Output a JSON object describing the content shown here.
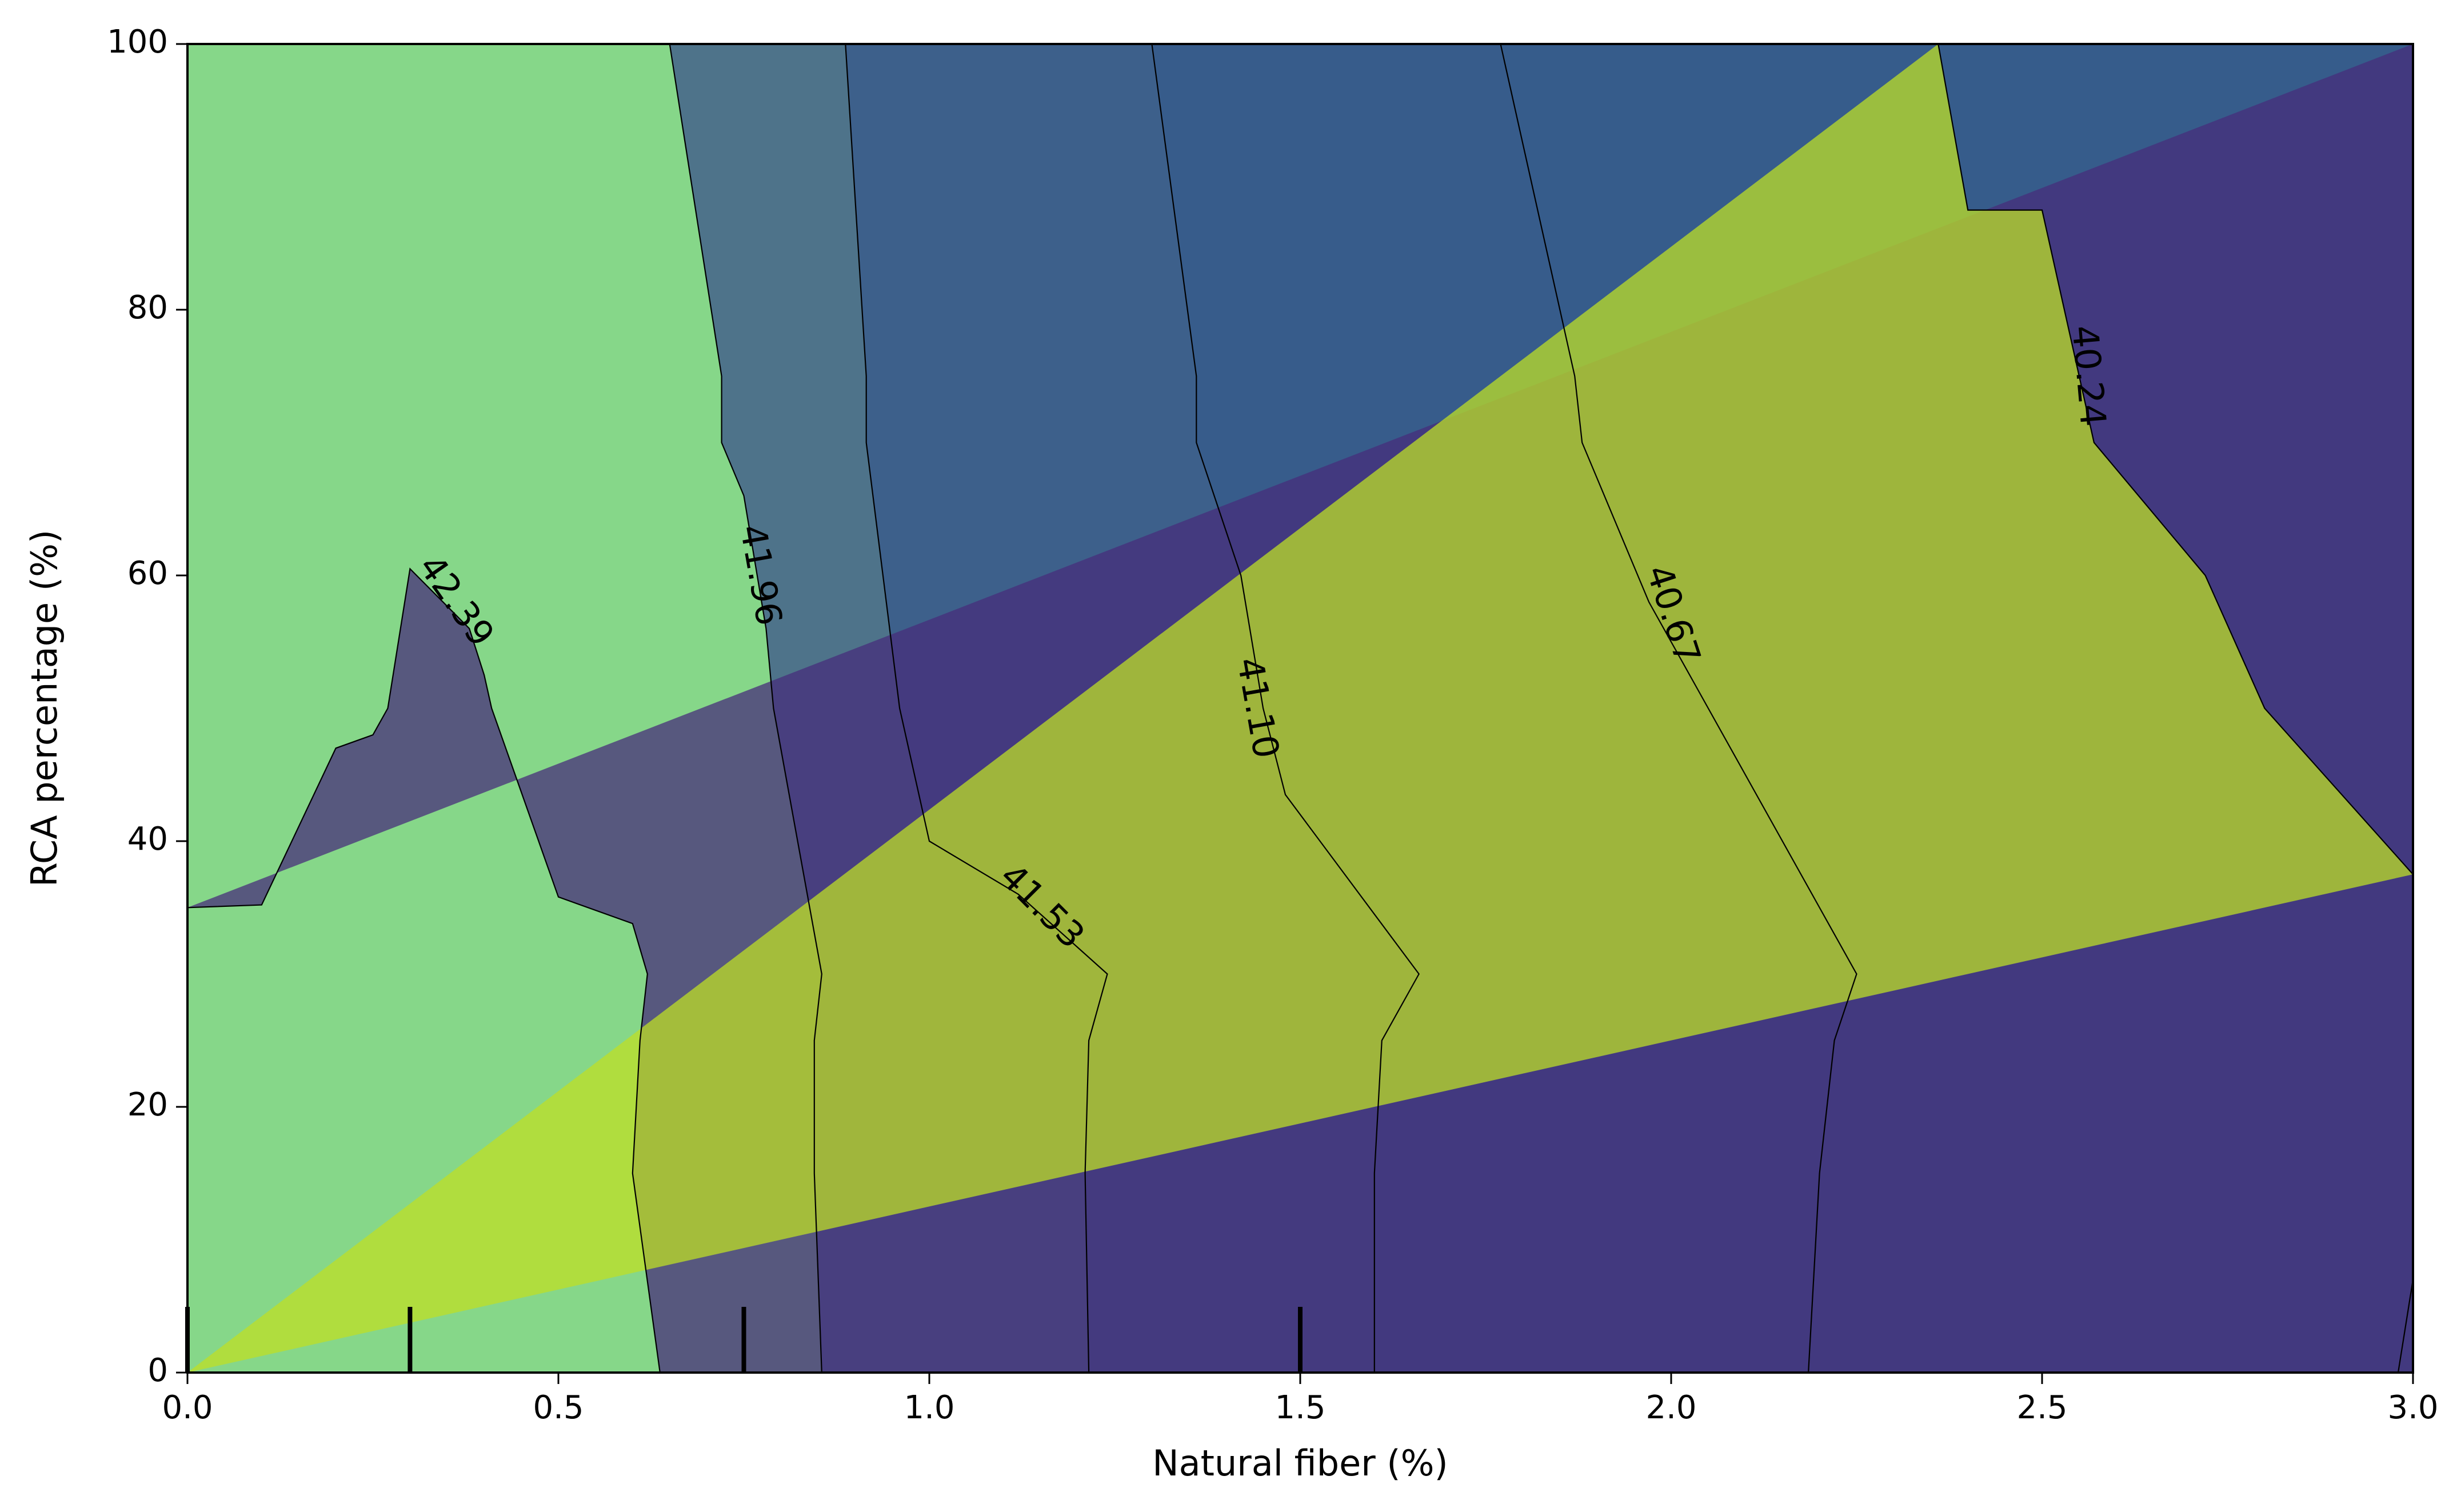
{
  "chart_data": {
    "type": "contour",
    "xlabel": "Natural  fiber (%)",
    "ylabel": "RCA percentage (%)",
    "xlim": [
      0.0,
      3.0
    ],
    "ylim": [
      0,
      100
    ],
    "x_ticks": [
      0.0,
      0.5,
      1.0,
      1.5,
      2.0,
      2.5,
      3.0
    ],
    "x_tick_labels": [
      "0.0",
      "0.5",
      "1.0",
      "1.5",
      "2.0",
      "2.5",
      "3.0"
    ],
    "y_ticks": [
      0,
      20,
      40,
      60,
      80,
      100
    ],
    "y_tick_labels": [
      "0",
      "20",
      "40",
      "60",
      "80",
      "100"
    ],
    "grid": false,
    "levels": [
      {
        "label": "40.24",
        "color": "#472d7b"
      },
      {
        "label": "40.67",
        "color": "#3b528b"
      },
      {
        "label": "41.10",
        "color": "#2c728e"
      },
      {
        "label": "41.53",
        "color": "#21918c"
      },
      {
        "label": "41.96",
        "color": "#28ae80"
      },
      {
        "label": "42.39",
        "color": "#5ec962"
      }
    ],
    "band_colors": [
      "#472d7b",
      "#3b528b",
      "#2c728e",
      "#21918c",
      "#28ae80",
      "#5ec962",
      "#bddf26"
    ],
    "band_alpha": 0.75,
    "contour_lines": [
      {
        "label": "42.39",
        "label_at": {
          "x": 0.36,
          "y": 58,
          "angle": 55
        },
        "points": [
          [
            0.0,
            35
          ],
          [
            0.1,
            35.2
          ],
          [
            0.2,
            47
          ],
          [
            0.25,
            48
          ],
          [
            0.27,
            50
          ],
          [
            0.3,
            60.5
          ],
          [
            0.38,
            56
          ],
          [
            0.4,
            52.5
          ],
          [
            0.41,
            50
          ],
          [
            0.5,
            35.8
          ],
          [
            0.6,
            33.8
          ],
          [
            0.62,
            30
          ],
          [
            0.61,
            25
          ],
          [
            0.6,
            15
          ],
          [
            0.637,
            0
          ]
        ]
      },
      {
        "label": "41.96",
        "label_at": {
          "x": 0.77,
          "y": 60,
          "angle": 80
        },
        "points": [
          [
            0.65,
            100
          ],
          [
            0.72,
            75
          ],
          [
            0.72,
            70
          ],
          [
            0.75,
            66
          ],
          [
            0.78,
            56
          ],
          [
            0.79,
            50
          ],
          [
            0.855,
            30
          ],
          [
            0.845,
            25
          ],
          [
            0.845,
            15
          ],
          [
            0.855,
            0
          ]
        ]
      },
      {
        "label": "41.53",
        "label_at": {
          "x": 1.15,
          "y": 35,
          "angle": 45
        },
        "points": [
          [
            0.887,
            100
          ],
          [
            0.915,
            75
          ],
          [
            0.915,
            70
          ],
          [
            0.96,
            50
          ],
          [
            1.0,
            40
          ],
          [
            1.12,
            36
          ],
          [
            1.2,
            32
          ],
          [
            1.24,
            30
          ],
          [
            1.215,
            25
          ],
          [
            1.21,
            15
          ],
          [
            1.215,
            0
          ]
        ]
      },
      {
        "label": "41.10",
        "label_at": {
          "x": 1.44,
          "y": 50,
          "angle": 80
        },
        "points": [
          [
            1.3,
            100
          ],
          [
            1.36,
            75
          ],
          [
            1.36,
            70
          ],
          [
            1.42,
            60
          ],
          [
            1.45,
            50
          ],
          [
            1.48,
            43.5
          ],
          [
            1.66,
            30
          ],
          [
            1.61,
            25
          ],
          [
            1.6,
            15
          ],
          [
            1.6,
            0
          ]
        ]
      },
      {
        "label": "40.67",
        "label_at": {
          "x": 2.0,
          "y": 57,
          "angle": 72
        },
        "points": [
          [
            1.77,
            100
          ],
          [
            1.87,
            75
          ],
          [
            1.88,
            70
          ],
          [
            1.97,
            58
          ],
          [
            2.05,
            50
          ],
          [
            2.25,
            30
          ],
          [
            2.22,
            25
          ],
          [
            2.2,
            15
          ],
          [
            2.185,
            0
          ]
        ]
      },
      {
        "label": "40.24",
        "label_at": {
          "x": 2.56,
          "y": 75,
          "angle": 85
        },
        "points": [
          [
            2.36,
            100
          ],
          [
            2.4,
            87.5
          ],
          [
            2.5,
            87.5
          ],
          [
            2.57,
            70
          ],
          [
            2.72,
            60
          ],
          [
            2.8,
            50
          ],
          [
            3.0,
            37.5
          ]
        ]
      },
      {
        "label": "",
        "points": [
          [
            2.98,
            0
          ],
          [
            3.0,
            7
          ]
        ]
      }
    ],
    "rug_ticks_x": [
      0.0,
      0.3,
      0.75,
      1.5
    ]
  }
}
